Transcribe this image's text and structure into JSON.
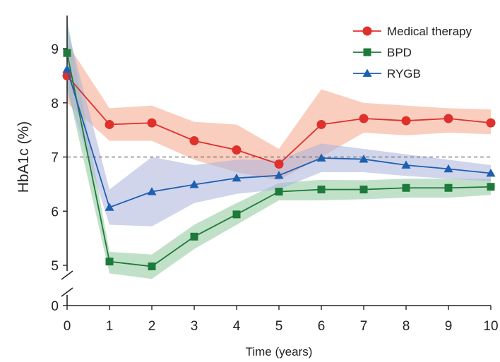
{
  "chart_data": {
    "type": "line",
    "title": "",
    "xlabel": "Time (years)",
    "ylabel": "HbA1c (%)",
    "x": [
      0,
      1,
      2,
      3,
      4,
      5,
      6,
      7,
      8,
      9,
      10
    ],
    "x_ticks": [
      "0",
      "1",
      "2",
      "3",
      "4",
      "5",
      "6",
      "7",
      "8",
      "9",
      "10"
    ],
    "y_ticks": [
      "0",
      "5",
      "6",
      "7",
      "8",
      "9"
    ],
    "ylim": [
      4.6,
      9.6
    ],
    "y_axis_break": true,
    "reference_line": 7,
    "legend_position": "top-right",
    "series": [
      {
        "name": "Medical therapy",
        "color": "#e0302b",
        "band_color": "#f4a58a",
        "marker": "circle",
        "values": [
          8.5,
          7.6,
          7.63,
          7.3,
          7.13,
          6.87,
          7.6,
          7.71,
          7.67,
          7.71,
          7.63
        ],
        "upper": [
          9.1,
          7.9,
          7.95,
          7.65,
          7.6,
          7.15,
          8.25,
          8.0,
          7.95,
          7.9,
          7.88
        ],
        "lower": [
          8.0,
          7.3,
          7.3,
          6.95,
          6.72,
          6.57,
          7.0,
          7.45,
          7.4,
          7.45,
          7.42
        ]
      },
      {
        "name": "BPD",
        "color": "#1e7a3a",
        "band_color": "#8dc89a",
        "marker": "square",
        "values": [
          8.92,
          5.07,
          4.98,
          5.53,
          5.94,
          6.36,
          6.4,
          6.4,
          6.43,
          6.43,
          6.45
        ],
        "upper": [
          9.55,
          5.25,
          5.2,
          5.75,
          6.15,
          6.52,
          6.58,
          6.57,
          6.6,
          6.6,
          6.6
        ],
        "lower": [
          8.3,
          4.85,
          4.75,
          5.3,
          5.75,
          6.2,
          6.2,
          6.22,
          6.25,
          6.25,
          6.3
        ]
      },
      {
        "name": "RYGB",
        "color": "#1f5fb0",
        "band_color": "#a9b2dc",
        "marker": "triangle",
        "values": [
          8.62,
          6.07,
          6.36,
          6.49,
          6.61,
          6.66,
          6.98,
          6.96,
          6.85,
          6.78,
          6.7
        ],
        "upper": [
          9.4,
          6.4,
          7.0,
          6.85,
          6.95,
          6.95,
          7.25,
          7.15,
          7.05,
          6.95,
          6.85
        ],
        "lower": [
          8.2,
          5.75,
          5.72,
          6.15,
          6.32,
          6.4,
          6.72,
          6.72,
          6.65,
          6.6,
          6.55
        ]
      }
    ]
  }
}
